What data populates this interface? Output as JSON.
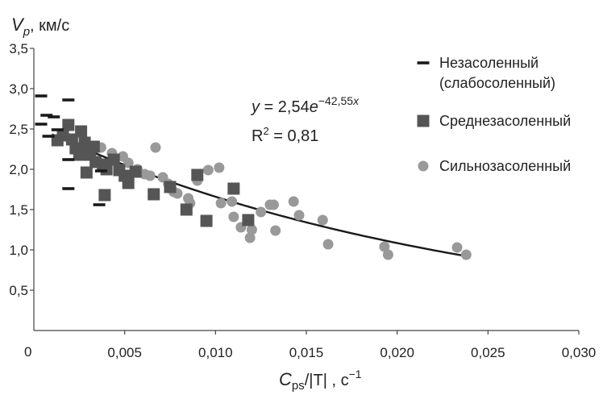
{
  "chart_data": {
    "type": "scatter",
    "ylabel": {
      "main": "V",
      "sub": "p",
      "rest": ", км/с"
    },
    "xlabel": {
      "main": "C",
      "sub": "ps",
      "mid": "/|T| , с",
      "sup": "−1"
    },
    "xlim": [
      0,
      0.03
    ],
    "ylim": [
      0,
      3.5
    ],
    "xticks": [
      {
        "v": 0.005,
        "label": "0,005"
      },
      {
        "v": 0.01,
        "label": "0,010"
      },
      {
        "v": 0.015,
        "label": "0,015"
      },
      {
        "v": 0.02,
        "label": "0,020"
      },
      {
        "v": 0.025,
        "label": "0,025"
      },
      {
        "v": 0.03,
        "label": "0,030"
      }
    ],
    "yticks": [
      {
        "v": 0.5,
        "label": "0,5"
      },
      {
        "v": 1.0,
        "label": "1,0"
      },
      {
        "v": 1.5,
        "label": "1,5"
      },
      {
        "v": 2.0,
        "label": "2,0"
      },
      {
        "v": 2.5,
        "label": "2,5"
      },
      {
        "v": 3.0,
        "label": "3,0"
      },
      {
        "v": 3.5,
        "label": "3,5"
      }
    ],
    "origin_label": "0",
    "grid": false,
    "legend_position": "right",
    "series": [
      {
        "name": "Незасоленный (слабосоленный)",
        "name_lines": [
          "Незасоленный",
          "(слабосоленный)"
        ],
        "marker": "dash",
        "color": "#1a1a1a",
        "points": [
          [
            0.0004,
            2.91
          ],
          [
            0.0019,
            2.86
          ],
          [
            0.0007,
            2.67
          ],
          [
            0.0011,
            2.65
          ],
          [
            0.0004,
            2.56
          ],
          [
            0.0008,
            2.41
          ],
          [
            0.0013,
            2.49
          ],
          [
            0.0019,
            2.12
          ],
          [
            0.0019,
            1.76
          ],
          [
            0.0037,
            1.98
          ],
          [
            0.0036,
            1.56
          ]
        ]
      },
      {
        "name": "Среднезасоленный",
        "name_lines": [
          "Среднезасоленный"
        ],
        "marker": "square",
        "color": "#555555",
        "points": [
          [
            0.0013,
            2.36
          ],
          [
            0.0016,
            2.42
          ],
          [
            0.0019,
            2.55
          ],
          [
            0.0021,
            2.37
          ],
          [
            0.0023,
            2.26
          ],
          [
            0.0026,
            2.47
          ],
          [
            0.0028,
            2.33
          ],
          [
            0.0029,
            2.18
          ],
          [
            0.0031,
            2.24
          ],
          [
            0.0033,
            2.28
          ],
          [
            0.0025,
            2.18
          ],
          [
            0.0029,
            1.96
          ],
          [
            0.0034,
            2.09
          ],
          [
            0.0038,
            2.06
          ],
          [
            0.004,
            2.0
          ],
          [
            0.0044,
            2.12
          ],
          [
            0.0047,
            1.99
          ],
          [
            0.005,
            1.92
          ],
          [
            0.0052,
            1.83
          ],
          [
            0.0056,
            1.97
          ],
          [
            0.0039,
            1.68
          ],
          [
            0.0066,
            1.69
          ],
          [
            0.0075,
            1.78
          ],
          [
            0.0084,
            1.5
          ],
          [
            0.009,
            1.93
          ],
          [
            0.0095,
            1.36
          ],
          [
            0.011,
            1.76
          ],
          [
            0.0118,
            1.37
          ]
        ]
      },
      {
        "name": "Сильнозасоленный",
        "name_lines": [
          "Сильнозасоленный"
        ],
        "marker": "circle",
        "color": "#999999",
        "points": [
          [
            0.0037,
            2.27
          ],
          [
            0.0043,
            2.2
          ],
          [
            0.0049,
            2.16
          ],
          [
            0.0052,
            2.08
          ],
          [
            0.0057,
            2.0
          ],
          [
            0.0061,
            1.94
          ],
          [
            0.0064,
            1.92
          ],
          [
            0.0067,
            2.27
          ],
          [
            0.0071,
            1.9
          ],
          [
            0.0074,
            1.82
          ],
          [
            0.0077,
            1.72
          ],
          [
            0.0079,
            1.7
          ],
          [
            0.0085,
            1.64
          ],
          [
            0.0086,
            1.58
          ],
          [
            0.009,
            1.86
          ],
          [
            0.0096,
            1.99
          ],
          [
            0.0102,
            2.02
          ],
          [
            0.0103,
            1.58
          ],
          [
            0.0109,
            1.6
          ],
          [
            0.011,
            1.41
          ],
          [
            0.0114,
            1.28
          ],
          [
            0.0119,
            1.15
          ],
          [
            0.012,
            1.25
          ],
          [
            0.0125,
            1.47
          ],
          [
            0.013,
            1.56
          ],
          [
            0.0133,
            1.24
          ],
          [
            0.0132,
            1.56
          ],
          [
            0.0143,
            1.6
          ],
          [
            0.0146,
            1.43
          ],
          [
            0.0159,
            1.37
          ],
          [
            0.0162,
            1.07
          ],
          [
            0.0193,
            1.04
          ],
          [
            0.0195,
            0.94
          ],
          [
            0.0233,
            1.03
          ],
          [
            0.0238,
            0.94
          ]
        ]
      }
    ],
    "trendline": {
      "a": 2.54,
      "b": -42.55,
      "x_range": [
        0.001,
        0.0238
      ],
      "color": "#1a1a1a"
    },
    "annotations": {
      "equation": {
        "y_var": "y",
        "equals": " = 2,54",
        "base": "e",
        "exponent": "−42,55",
        "exp_var": "x"
      },
      "r2": {
        "r": "R",
        "sup": "2",
        "value": " = 0,81"
      }
    }
  }
}
